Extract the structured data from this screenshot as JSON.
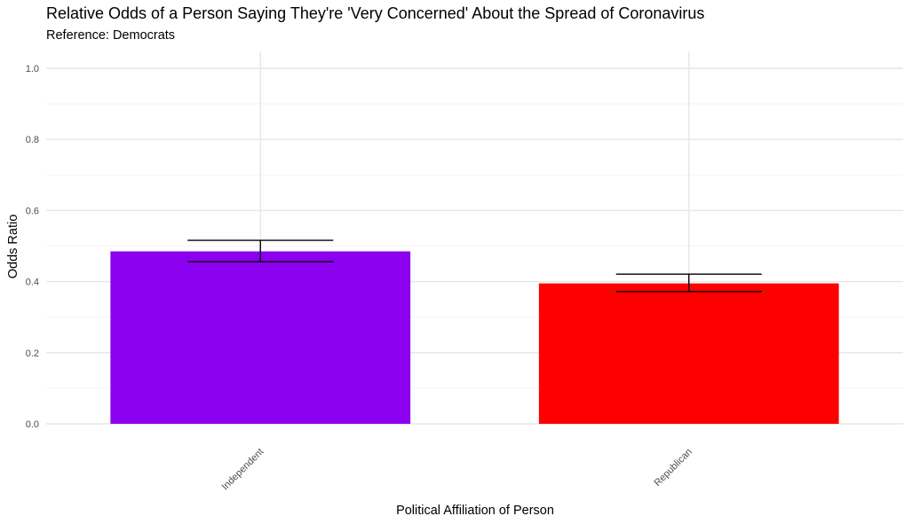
{
  "chart_data": {
    "type": "bar",
    "title": "Relative Odds of a Person Saying They're 'Very Concerned' About the Spread of Coronavirus",
    "subtitle": "Reference: Democrats",
    "xlabel": "Political Affiliation of Person",
    "ylabel": "Odds Ratio",
    "categories": [
      "Independent",
      "Republican"
    ],
    "values": [
      0.485,
      0.395
    ],
    "error_lower": [
      0.456,
      0.372
    ],
    "error_upper": [
      0.516,
      0.421
    ],
    "bar_colors": [
      "#8B00EE",
      "#FF0000"
    ],
    "ylim": [
      0,
      1.0
    ],
    "yticks": [
      0.0,
      0.2,
      0.4,
      0.6,
      0.8,
      1.0
    ],
    "ytick_labels": [
      "0.0",
      "0.2",
      "0.4",
      "0.6",
      "0.8",
      "1.0"
    ],
    "grid": true,
    "legend": "none"
  }
}
